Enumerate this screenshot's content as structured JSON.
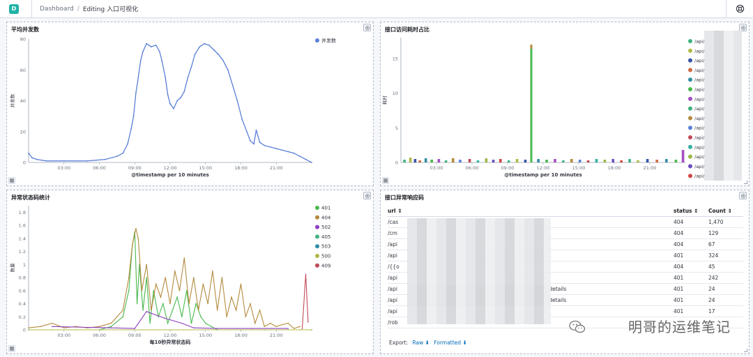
{
  "topbar": {
    "logo_letter": "D",
    "breadcrumb_root": "Dashboard",
    "breadcrumb_current": "Editing 入口可视化"
  },
  "panels": {
    "avg_concurrency": {
      "title": "平均并发数"
    },
    "api_time_share": {
      "title": "接口访问耗时占比"
    },
    "abnormal_status": {
      "title": "异常状态码统计"
    },
    "api_abnormal_codes": {
      "title": "接口异常响应码"
    }
  },
  "chart_data": [
    {
      "type": "line",
      "title": "平均并发数",
      "xlabel": "@timestamp per 10 minutes",
      "ylabel": "并发数",
      "x_ticks": [
        "03:00",
        "06:00",
        "09:00",
        "12:00",
        "15:00",
        "18:00",
        "21:00"
      ],
      "y_ticks": [
        0,
        20,
        40,
        60,
        80
      ],
      "ylim": [
        0,
        80
      ],
      "xlim": [
        0,
        24
      ],
      "legend": "right",
      "series": [
        {
          "name": "并发数",
          "color": "#5a7fd6",
          "points": [
            [
              0,
              6
            ],
            [
              0.3,
              3
            ],
            [
              0.7,
              2
            ],
            [
              1.5,
              1
            ],
            [
              3,
              1
            ],
            [
              5,
              1
            ],
            [
              6.5,
              2
            ],
            [
              7.5,
              4
            ],
            [
              8,
              6
            ],
            [
              8.4,
              12
            ],
            [
              8.7,
              22
            ],
            [
              8.9,
              30
            ],
            [
              9.1,
              45
            ],
            [
              9.3,
              55
            ],
            [
              9.5,
              66
            ],
            [
              9.7,
              72
            ],
            [
              10.0,
              77
            ],
            [
              10.4,
              75
            ],
            [
              10.8,
              76
            ],
            [
              11.1,
              72
            ],
            [
              11.3,
              66
            ],
            [
              11.6,
              55
            ],
            [
              11.8,
              44
            ],
            [
              12.0,
              38
            ],
            [
              12.3,
              35
            ],
            [
              12.6,
              40
            ],
            [
              12.9,
              42
            ],
            [
              13.2,
              46
            ],
            [
              13.5,
              55
            ],
            [
              13.8,
              62
            ],
            [
              14.1,
              70
            ],
            [
              14.5,
              75
            ],
            [
              14.9,
              77
            ],
            [
              15.3,
              76
            ],
            [
              15.7,
              73
            ],
            [
              16.1,
              70
            ],
            [
              16.5,
              66
            ],
            [
              16.9,
              60
            ],
            [
              17.3,
              50
            ],
            [
              17.7,
              40
            ],
            [
              18.1,
              28
            ],
            [
              18.5,
              20
            ],
            [
              18.8,
              14
            ],
            [
              19.1,
              12
            ],
            [
              19.3,
              21
            ],
            [
              19.6,
              13
            ],
            [
              20.0,
              11
            ],
            [
              20.5,
              10
            ],
            [
              21.0,
              9
            ],
            [
              21.5,
              8
            ],
            [
              22.0,
              7
            ],
            [
              22.5,
              6
            ],
            [
              23.0,
              4
            ],
            [
              23.5,
              2
            ],
            [
              24,
              0
            ]
          ]
        }
      ]
    },
    {
      "type": "bar",
      "title": "接口访问耗时占比",
      "xlabel": "@timestamp per 10 minutes",
      "ylabel": "耗时",
      "x_ticks": [
        "03:00",
        "06:00",
        "09:00",
        "12:00",
        "15:00",
        "18:00",
        "21:00"
      ],
      "y_ticks": [
        0,
        5,
        10,
        15
      ],
      "ylim": [
        0,
        18
      ],
      "xlim": [
        0,
        24
      ],
      "legend_labels": [
        "/api/",
        "/api/",
        "/api/",
        "/api/",
        "/api/",
        "/api/",
        "/api/",
        "/api/",
        "/api/",
        "/api/",
        "/api/",
        "/api/",
        "/api/",
        "/api/",
        "/api/"
      ],
      "legend_colors": [
        "#3fb37f",
        "#b0b846",
        "#3754a8",
        "#d06a44",
        "#2f8fa1",
        "#48b84c",
        "#a34ec0",
        "#3fb37f",
        "#b38a3c",
        "#5a7fd6",
        "#c14a56",
        "#2fb3a1",
        "#9bb846",
        "#6a4ec0",
        "#d04444"
      ],
      "bars": [
        {
          "x": 0.3,
          "v": 0.4
        },
        {
          "x": 0.8,
          "v": 0.7
        },
        {
          "x": 1.2,
          "v": 0.5
        },
        {
          "x": 1.6,
          "v": 0.3
        },
        {
          "x": 2.1,
          "v": 0.6
        },
        {
          "x": 2.6,
          "v": 0.4
        },
        {
          "x": 3.2,
          "v": 0.5
        },
        {
          "x": 3.8,
          "v": 0.3
        },
        {
          "x": 4.4,
          "v": 0.6
        },
        {
          "x": 5.0,
          "v": 0.4
        },
        {
          "x": 5.8,
          "v": 0.5
        },
        {
          "x": 6.5,
          "v": 0.3
        },
        {
          "x": 7.2,
          "v": 0.6
        },
        {
          "x": 7.8,
          "v": 0.4
        },
        {
          "x": 8.4,
          "v": 0.5
        },
        {
          "x": 9.1,
          "v": 0.3
        },
        {
          "x": 9.8,
          "v": 0.5
        },
        {
          "x": 10.5,
          "v": 0.4
        },
        {
          "x": 11.0,
          "v": 17
        },
        {
          "x": 11.6,
          "v": 0.5
        },
        {
          "x": 12.3,
          "v": 0.4
        },
        {
          "x": 13.0,
          "v": 0.5
        },
        {
          "x": 13.7,
          "v": 0.3
        },
        {
          "x": 14.4,
          "v": 0.5
        },
        {
          "x": 15.1,
          "v": 0.4
        },
        {
          "x": 15.8,
          "v": 0.3
        },
        {
          "x": 16.5,
          "v": 0.5
        },
        {
          "x": 17.2,
          "v": 0.4
        },
        {
          "x": 17.9,
          "v": 0.5
        },
        {
          "x": 18.6,
          "v": 0.3
        },
        {
          "x": 19.3,
          "v": 0.5
        },
        {
          "x": 20.0,
          "v": 0.3
        },
        {
          "x": 20.8,
          "v": 0.5
        },
        {
          "x": 21.6,
          "v": 0.4
        },
        {
          "x": 22.4,
          "v": 0.5
        },
        {
          "x": 23.2,
          "v": 0.4
        },
        {
          "x": 23.8,
          "v": 1.8
        }
      ]
    },
    {
      "type": "line",
      "title": "异常状态码统计",
      "xlabel": "每10秒异常状态码",
      "ylabel": "数量",
      "x_ticks": [
        "03:00",
        "06:00",
        "09:00",
        "12:00",
        "15:00",
        "18:00",
        "21:00"
      ],
      "y_ticks": [
        0,
        0.2,
        0.4,
        0.6,
        0.8,
        1,
        1.2,
        1.4,
        1.6,
        1.8
      ],
      "ylim": [
        0,
        1.9
      ],
      "xlim": [
        0,
        24
      ],
      "legend": "right",
      "series": [
        {
          "name": "401",
          "color": "#48b84c",
          "points": [
            [
              0,
              0
            ],
            [
              2,
              0
            ],
            [
              4,
              0
            ],
            [
              6,
              0
            ],
            [
              7,
              0.05
            ],
            [
              8,
              0.2
            ],
            [
              8.5,
              0.6
            ],
            [
              8.8,
              1.3
            ],
            [
              9.0,
              1.5
            ],
            [
              9.2,
              0.4
            ],
            [
              9.4,
              1.0
            ],
            [
              9.7,
              0.3
            ],
            [
              10.0,
              0.8
            ],
            [
              10.3,
              0.1
            ],
            [
              10.6,
              0.6
            ],
            [
              11.0,
              0.2
            ],
            [
              11.4,
              0.4
            ],
            [
              11.8,
              0.1
            ],
            [
              12.2,
              0.3
            ],
            [
              12.6,
              0.5
            ],
            [
              13.0,
              0.2
            ],
            [
              13.4,
              0.6
            ],
            [
              13.8,
              0.1
            ],
            [
              14.2,
              0.4
            ],
            [
              14.6,
              0.2
            ],
            [
              15.0,
              0.1
            ],
            [
              15.5,
              0.05
            ],
            [
              16,
              0
            ],
            [
              18,
              0
            ],
            [
              20,
              0
            ],
            [
              22,
              0
            ],
            [
              23,
              0
            ]
          ]
        },
        {
          "name": "404",
          "color": "#b38a3c",
          "points": [
            [
              0,
              0.03
            ],
            [
              1.0,
              0.05
            ],
            [
              2.0,
              0.1
            ],
            [
              3.0,
              0.03
            ],
            [
              4.0,
              0.05
            ],
            [
              5.0,
              0.03
            ],
            [
              6.0,
              0.05
            ],
            [
              7.0,
              0.1
            ],
            [
              8.0,
              0.3
            ],
            [
              8.5,
              0.8
            ],
            [
              8.8,
              1.3
            ],
            [
              9.1,
              1.55
            ],
            [
              9.3,
              1.4
            ],
            [
              9.6,
              0.6
            ],
            [
              10.0,
              1.0
            ],
            [
              10.4,
              0.3
            ],
            [
              10.8,
              0.7
            ],
            [
              11.2,
              0.5
            ],
            [
              11.6,
              0.8
            ],
            [
              12.0,
              0.4
            ],
            [
              12.4,
              0.9
            ],
            [
              12.8,
              0.6
            ],
            [
              13.2,
              1.1
            ],
            [
              13.6,
              0.4
            ],
            [
              14.0,
              0.8
            ],
            [
              14.4,
              0.3
            ],
            [
              14.8,
              0.7
            ],
            [
              15.2,
              0.4
            ],
            [
              15.6,
              0.9
            ],
            [
              16.0,
              0.3
            ],
            [
              16.4,
              0.8
            ],
            [
              16.8,
              0.2
            ],
            [
              17.2,
              0.5
            ],
            [
              17.6,
              0.3
            ],
            [
              18.0,
              0.7
            ],
            [
              18.4,
              0.2
            ],
            [
              18.8,
              0.4
            ],
            [
              19.2,
              0.1
            ],
            [
              19.6,
              0.3
            ],
            [
              20.0,
              0.05
            ],
            [
              20.5,
              0.1
            ],
            [
              21.0,
              0.05
            ],
            [
              21.5,
              0.08
            ],
            [
              22.0,
              0.1
            ],
            [
              22.5,
              0.02
            ],
            [
              23.0,
              0.05
            ]
          ]
        },
        {
          "name": "502",
          "color": "#8e3fc0",
          "points": [
            [
              2,
              0.05
            ],
            [
              7,
              0.03
            ],
            [
              9,
              0.02
            ],
            [
              10,
              0.28
            ],
            [
              11.5,
              0.18
            ],
            [
              13,
              0.1
            ],
            [
              14,
              0.03
            ],
            [
              16,
              0.02
            ],
            [
              19,
              0.02
            ],
            [
              22,
              0.02
            ]
          ]
        },
        {
          "name": "405",
          "color": "#3fb37f",
          "points": [
            [
              0,
              0
            ],
            [
              24,
              0
            ]
          ]
        },
        {
          "name": "503",
          "color": "#2f8fa1",
          "points": [
            [
              0,
              0
            ],
            [
              24,
              0
            ]
          ]
        },
        {
          "name": "500",
          "color": "#b0b846",
          "points": [
            [
              0,
              0
            ],
            [
              24,
              0
            ]
          ]
        },
        {
          "name": "409",
          "color": "#c14a56",
          "points": [
            [
              23.2,
              0.02
            ],
            [
              23.5,
              0.85
            ],
            [
              23.7,
              0.12
            ]
          ]
        }
      ]
    }
  ],
  "table": {
    "columns": {
      "url": "url",
      "status": "status",
      "count": "Count"
    },
    "rows": [
      {
        "url": "/cas",
        "status": "404",
        "count": "1,470"
      },
      {
        "url": "/cm",
        "status": "404",
        "count": "129"
      },
      {
        "url": "/api",
        "status": "404",
        "count": "67"
      },
      {
        "url": "/api",
        "status": "401",
        "count": "324"
      },
      {
        "url": "/{{o",
        "status": "404",
        "count": "45"
      },
      {
        "url": "/api",
        "status": "401",
        "count": "242"
      },
      {
        "url": "/api",
        "suffix": "/details",
        "status": "401",
        "count": "24"
      },
      {
        "url": "/api",
        "suffix": "d/details",
        "status": "401",
        "count": "24"
      },
      {
        "url": "/api",
        "status": "401",
        "count": "17"
      },
      {
        "url": "/rob",
        "status": "",
        "count": ""
      }
    ],
    "export_label": "Export:",
    "raw_label": "Raw",
    "formatted_label": "Formatted"
  },
  "watermark": {
    "text": "明哥的运维笔记"
  }
}
